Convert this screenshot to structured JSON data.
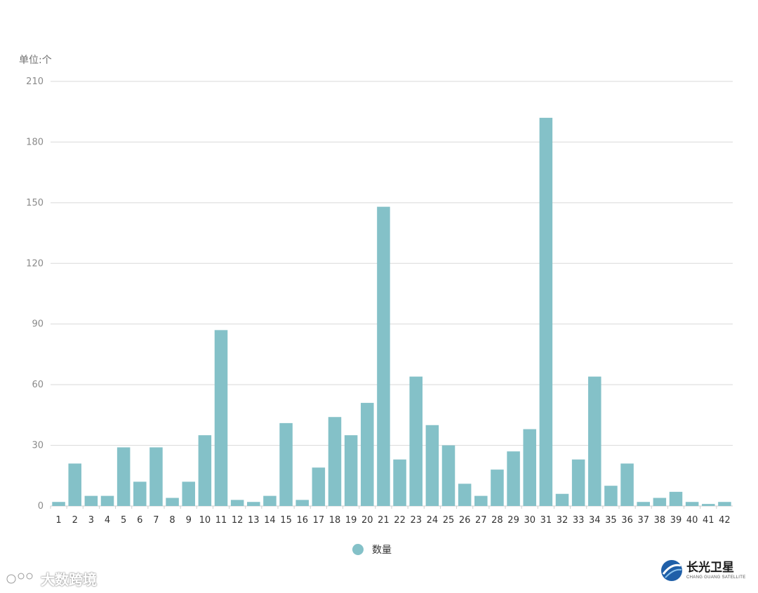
{
  "chart_data": {
    "type": "bar",
    "unit_label": "单位:个",
    "categories": [
      "1",
      "2",
      "3",
      "4",
      "5",
      "6",
      "7",
      "8",
      "9",
      "10",
      "11",
      "12",
      "13",
      "14",
      "15",
      "16",
      "17",
      "18",
      "19",
      "20",
      "21",
      "22",
      "23",
      "24",
      "25",
      "26",
      "27",
      "28",
      "29",
      "30",
      "31",
      "32",
      "33",
      "34",
      "35",
      "36",
      "37",
      "38",
      "39",
      "40",
      "41",
      "42"
    ],
    "series": [
      {
        "name": "数量",
        "values": [
          2,
          21,
          5,
          5,
          29,
          12,
          29,
          4,
          12,
          35,
          87,
          3,
          2,
          5,
          41,
          3,
          19,
          44,
          35,
          51,
          148,
          23,
          64,
          40,
          30,
          11,
          5,
          18,
          27,
          38,
          192,
          6,
          23,
          64,
          10,
          21,
          2,
          4,
          7,
          2,
          1,
          2
        ]
      }
    ],
    "ylim": [
      0,
      210
    ],
    "yticks": [
      0,
      30,
      60,
      90,
      120,
      150,
      180,
      210
    ],
    "grid": true,
    "legend_position": "bottom-center",
    "colors": {
      "bar": "#84c1c8",
      "grid": "#d9d9d9"
    }
  },
  "watermarks": {
    "left_text": "大数跨境",
    "right_cn": "长光卫星",
    "right_en": "CHANG GUANG SATELLITE"
  }
}
